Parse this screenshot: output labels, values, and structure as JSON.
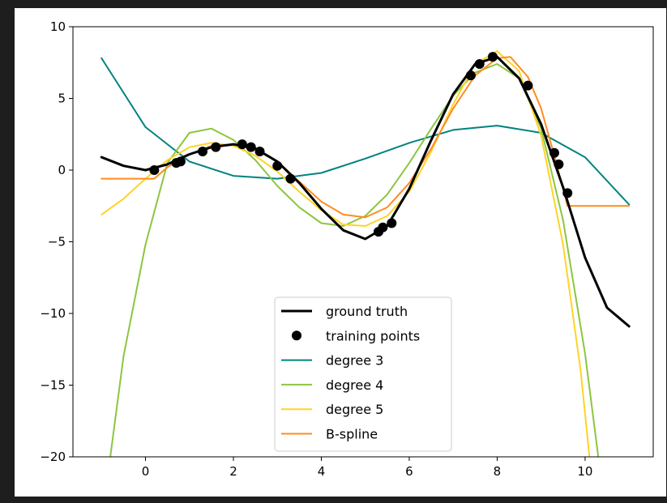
{
  "chart_data": {
    "type": "line",
    "title": "",
    "xlabel": "",
    "ylabel": "",
    "xlim": [
      -1.65,
      11.55
    ],
    "ylim": [
      -20,
      10
    ],
    "xticks": [
      0,
      2,
      4,
      6,
      8,
      10
    ],
    "yticks": [
      10,
      5,
      0,
      -5,
      -10,
      -15,
      -20
    ],
    "xtick_labels": [
      "0",
      "2",
      "4",
      "6",
      "8",
      "10"
    ],
    "ytick_labels": [
      "10",
      "5",
      "0",
      "−5",
      "−10",
      "−15",
      "−20"
    ],
    "grid": false,
    "legend_position": "lower-center",
    "series": [
      {
        "name": "ground truth",
        "kind": "line",
        "color": "#000000",
        "x": [
          -1,
          -0.5,
          0,
          0.5,
          1,
          1.5,
          2,
          2.5,
          3,
          3.5,
          4,
          4.5,
          5,
          5.5,
          6,
          6.5,
          7,
          7.5,
          8,
          8.5,
          9,
          9.5,
          10,
          10.5,
          11
        ],
        "y": [
          0.9,
          0.3,
          0,
          0.4,
          1.1,
          1.6,
          1.8,
          1.5,
          0.6,
          -0.9,
          -2.7,
          -4.2,
          -4.8,
          -3.9,
          -1.3,
          2.1,
          5.3,
          7.4,
          7.9,
          6.4,
          3.2,
          -1.2,
          -6.1,
          -9.6,
          -10.9
        ]
      },
      {
        "name": "training points",
        "kind": "scatter",
        "color": "#000000",
        "x": [
          0.2,
          0.7,
          0.8,
          1.3,
          1.6,
          2.2,
          2.4,
          2.6,
          3.0,
          3.3,
          5.3,
          5.4,
          5.6,
          7.4,
          7.6,
          7.9,
          8.7,
          9.3,
          9.4,
          9.6
        ],
        "y": [
          0.0,
          0.5,
          0.6,
          1.3,
          1.6,
          1.8,
          1.6,
          1.3,
          0.3,
          -0.6,
          -4.3,
          -4.0,
          -3.7,
          6.6,
          7.4,
          7.9,
          5.9,
          1.2,
          0.4,
          -1.6
        ]
      },
      {
        "name": "degree 3",
        "kind": "line",
        "color": "#00837f",
        "x": [
          -1,
          0,
          1,
          2,
          3,
          4,
          5,
          6,
          7,
          8,
          9,
          10,
          11
        ],
        "y": [
          7.8,
          3.0,
          0.6,
          -0.4,
          -0.6,
          -0.2,
          0.8,
          1.9,
          2.8,
          3.1,
          2.6,
          0.9,
          -2.4
        ]
      },
      {
        "name": "degree 4",
        "kind": "line",
        "color": "#8cc63f",
        "x": [
          -0.8,
          -0.5,
          0,
          0.5,
          1,
          1.5,
          2,
          2.5,
          3,
          3.5,
          4,
          4.5,
          5,
          5.5,
          6,
          6.5,
          7,
          7.5,
          8,
          8.5,
          9,
          9.5,
          10,
          10.3
        ],
        "y": [
          -20,
          -13,
          -5.2,
          0.5,
          2.6,
          2.9,
          2.1,
          0.7,
          -1.1,
          -2.6,
          -3.7,
          -3.9,
          -3.2,
          -1.7,
          0.5,
          2.9,
          5.2,
          6.8,
          7.4,
          6.4,
          2.9,
          -3.5,
          -12.8,
          -20
        ]
      },
      {
        "name": "degree 5",
        "kind": "line",
        "color": "#ffd326",
        "x": [
          -1,
          -0.5,
          0,
          0.5,
          1,
          1.5,
          2,
          2.5,
          3,
          3.5,
          4,
          4.5,
          5,
          5.5,
          6,
          6.5,
          7,
          7.5,
          8,
          8.5,
          9,
          9.5,
          9.9,
          10.1
        ],
        "y": [
          -3.1,
          -2.0,
          -0.6,
          0.7,
          1.6,
          1.9,
          1.7,
          1.0,
          -0.1,
          -1.5,
          -2.8,
          -3.8,
          -3.9,
          -3.2,
          -1.5,
          1.3,
          4.6,
          7.4,
          8.3,
          6.9,
          2.4,
          -5.2,
          -14,
          -20
        ]
      },
      {
        "name": "B-spline",
        "kind": "line",
        "color": "#ff8c21",
        "x": [
          -1,
          0.2,
          0.5,
          1,
          1.5,
          2,
          2.5,
          3,
          3.5,
          4,
          4.5,
          5,
          5.5,
          6,
          6.5,
          7,
          7.5,
          8,
          8.3,
          8.7,
          9,
          9.3,
          9.6,
          10,
          11
        ],
        "y": [
          -0.6,
          -0.6,
          0.2,
          1.1,
          1.7,
          1.8,
          1.5,
          0.6,
          -0.8,
          -2.2,
          -3.1,
          -3.3,
          -2.6,
          -0.9,
          1.5,
          4.3,
          6.6,
          7.8,
          7.9,
          6.5,
          4.3,
          1.0,
          -2.5,
          -2.5,
          -2.5
        ]
      }
    ]
  }
}
